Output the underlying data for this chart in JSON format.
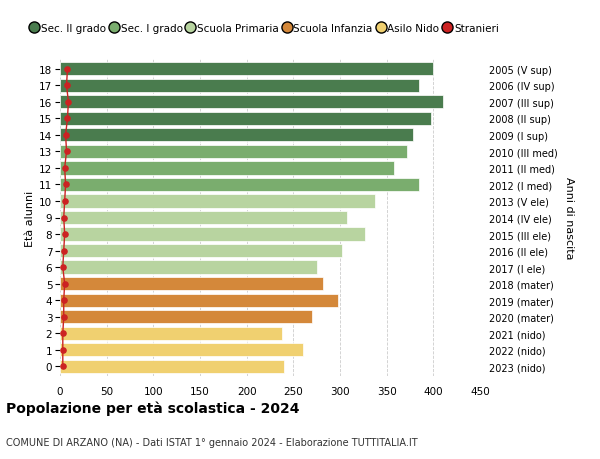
{
  "ages": [
    18,
    17,
    16,
    15,
    14,
    13,
    12,
    11,
    10,
    9,
    8,
    7,
    6,
    5,
    4,
    3,
    2,
    1,
    0
  ],
  "years_labels": [
    "2005 (V sup)",
    "2006 (IV sup)",
    "2007 (III sup)",
    "2008 (II sup)",
    "2009 (I sup)",
    "2010 (III med)",
    "2011 (II med)",
    "2012 (I med)",
    "2013 (V ele)",
    "2014 (IV ele)",
    "2015 (III ele)",
    "2016 (II ele)",
    "2017 (I ele)",
    "2018 (mater)",
    "2019 (mater)",
    "2020 (mater)",
    "2021 (nido)",
    "2022 (nido)",
    "2023 (nido)"
  ],
  "values": [
    400,
    385,
    410,
    397,
    378,
    372,
    358,
    385,
    338,
    308,
    327,
    302,
    275,
    282,
    298,
    270,
    238,
    260,
    240
  ],
  "stranieri": [
    8,
    7,
    9,
    8,
    6,
    7,
    5,
    6,
    5,
    4,
    5,
    4,
    3,
    5,
    4,
    4,
    3,
    3,
    3
  ],
  "bar_colors": [
    "#4a7c4e",
    "#4a7c4e",
    "#4a7c4e",
    "#4a7c4e",
    "#4a7c4e",
    "#7aad6e",
    "#7aad6e",
    "#7aad6e",
    "#b8d4a0",
    "#b8d4a0",
    "#b8d4a0",
    "#b8d4a0",
    "#b8d4a0",
    "#d4883a",
    "#d4883a",
    "#d4883a",
    "#f0d070",
    "#f0d070",
    "#f0d070"
  ],
  "legend_colors": [
    "#4a7c4e",
    "#7aad6e",
    "#b8d4a0",
    "#d4883a",
    "#f0d070",
    "#cc2222"
  ],
  "legend_labels": [
    "Sec. II grado",
    "Sec. I grado",
    "Scuola Primaria",
    "Scuola Infanzia",
    "Asilo Nido",
    "Stranieri"
  ],
  "title": "Popolazione per età scolastica - 2024",
  "subtitle": "COMUNE DI ARZANO (NA) - Dati ISTAT 1° gennaio 2024 - Elaborazione TUTTITALIA.IT",
  "ylabel_left": "Età alunni",
  "ylabel_right": "Anni di nascita",
  "xlim": [
    0,
    450
  ],
  "xticks": [
    0,
    50,
    100,
    150,
    200,
    250,
    300,
    350,
    400,
    450
  ],
  "background_color": "#ffffff",
  "grid_color": "#cccccc",
  "stranieri_color": "#cc2222",
  "bar_height": 0.8
}
